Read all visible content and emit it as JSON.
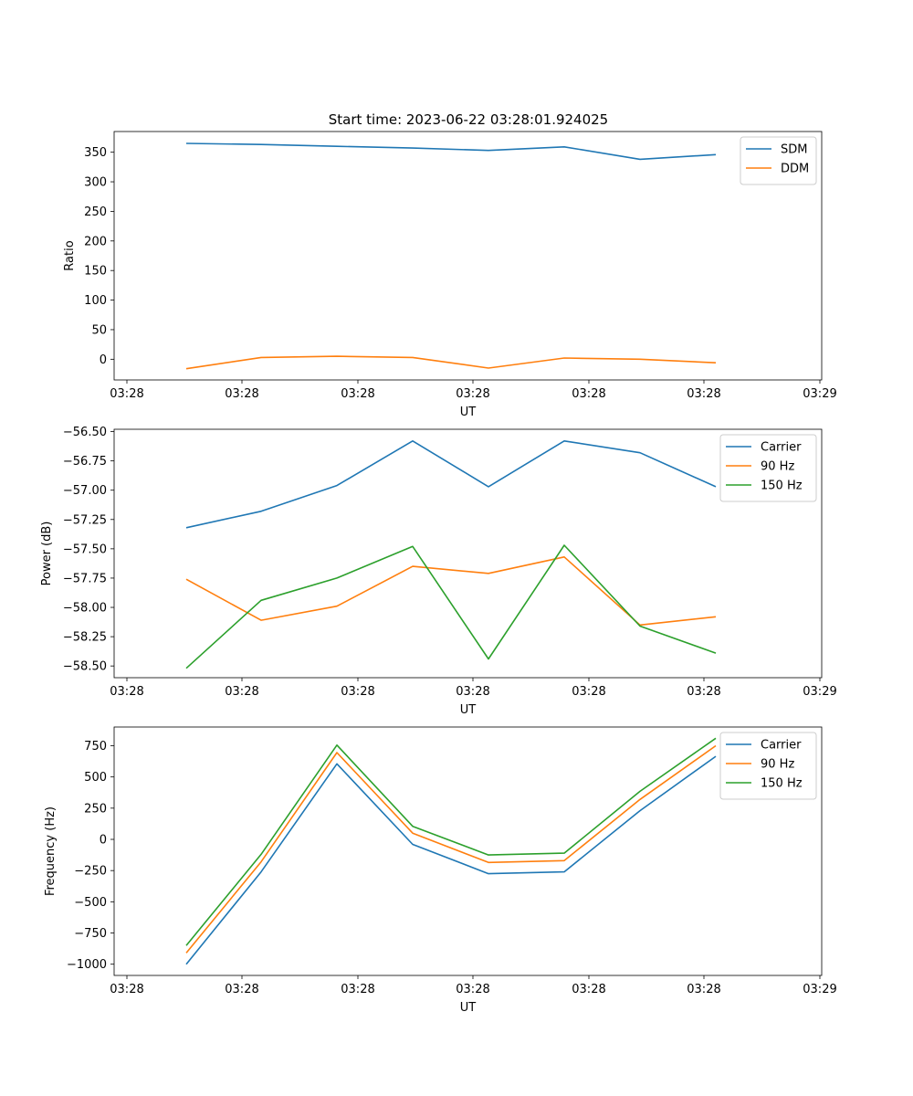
{
  "figure_title": "Start time: 2023-06-22 03:28:01.924025",
  "colors": {
    "blue": "#1f77b4",
    "orange": "#ff7f0e",
    "green": "#2ca02c"
  },
  "chart_data": [
    {
      "type": "line",
      "title": "Start time: 2023-06-22 03:28:01.924025",
      "xlabel": "UT",
      "ylabel": "Ratio",
      "x_tick_labels": [
        "03:28",
        "03:28",
        "03:28",
        "03:28",
        "03:28",
        "03:28",
        "03:28"
      ],
      "x_last_tick_label": "03:29",
      "ylim": [
        -35,
        385
      ],
      "y_ticks": [
        0,
        50,
        100,
        150,
        200,
        250,
        300,
        350
      ],
      "y_tick_labels": [
        "0",
        "50",
        "100",
        "150",
        "200",
        "250",
        "300",
        "350"
      ],
      "legend": "top-right",
      "series": [
        {
          "name": "SDM",
          "color": "#1f77b4",
          "values": [
            365,
            363,
            360,
            357,
            353,
            359,
            338,
            346
          ]
        },
        {
          "name": "DDM",
          "color": "#ff7f0e",
          "values": [
            -16,
            3,
            5,
            3,
            -15,
            2,
            0,
            -6
          ]
        }
      ]
    },
    {
      "type": "line",
      "title": "",
      "xlabel": "UT",
      "ylabel": "Power (dB)",
      "x_tick_labels": [
        "03:28",
        "03:28",
        "03:28",
        "03:28",
        "03:28",
        "03:28",
        "03:28"
      ],
      "x_last_tick_label": "03:29",
      "ylim": [
        -58.6,
        -56.48
      ],
      "y_ticks": [
        -56.5,
        -56.75,
        -57.0,
        -57.25,
        -57.5,
        -57.75,
        -58.0,
        -58.25,
        -58.5
      ],
      "y_tick_labels": [
        "−56.50",
        "−56.75",
        "−57.00",
        "−57.25",
        "−57.50",
        "−57.75",
        "−58.00",
        "−58.25",
        "−58.50"
      ],
      "legend": "top-right",
      "series": [
        {
          "name": "Carrier",
          "color": "#1f77b4",
          "values": [
            -57.32,
            -57.18,
            -56.96,
            -56.58,
            -56.97,
            -56.58,
            -56.68,
            -56.97
          ]
        },
        {
          "name": "90 Hz",
          "color": "#ff7f0e",
          "values": [
            -57.76,
            -58.11,
            -57.99,
            -57.65,
            -57.71,
            -57.57,
            -58.15,
            -58.08
          ]
        },
        {
          "name": "150 Hz",
          "color": "#2ca02c",
          "values": [
            -58.52,
            -57.94,
            -57.75,
            -57.48,
            -58.44,
            -57.47,
            -58.16,
            -58.39
          ]
        }
      ]
    },
    {
      "type": "line",
      "title": "",
      "xlabel": "UT",
      "ylabel": "Frequency (Hz)",
      "x_tick_labels": [
        "03:28",
        "03:28",
        "03:28",
        "03:28",
        "03:28",
        "03:28",
        "03:28"
      ],
      "x_last_tick_label": "03:29",
      "ylim": [
        -1090,
        900
      ],
      "y_ticks": [
        750,
        500,
        250,
        0,
        -250,
        -500,
        -750,
        -1000
      ],
      "y_tick_labels": [
        "750",
        "500",
        "250",
        "0",
        "−250",
        "−500",
        "−750",
        "−1000"
      ],
      "legend": "top-right",
      "series": [
        {
          "name": "Carrier",
          "color": "#1f77b4",
          "values": [
            -1000,
            -260,
            605,
            -40,
            -275,
            -260,
            230,
            665
          ]
        },
        {
          "name": "90 Hz",
          "color": "#ff7f0e",
          "values": [
            -910,
            -180,
            695,
            50,
            -185,
            -170,
            320,
            750
          ]
        },
        {
          "name": "150 Hz",
          "color": "#2ca02c",
          "values": [
            -850,
            -120,
            755,
            105,
            -125,
            -110,
            385,
            810
          ]
        }
      ]
    }
  ]
}
